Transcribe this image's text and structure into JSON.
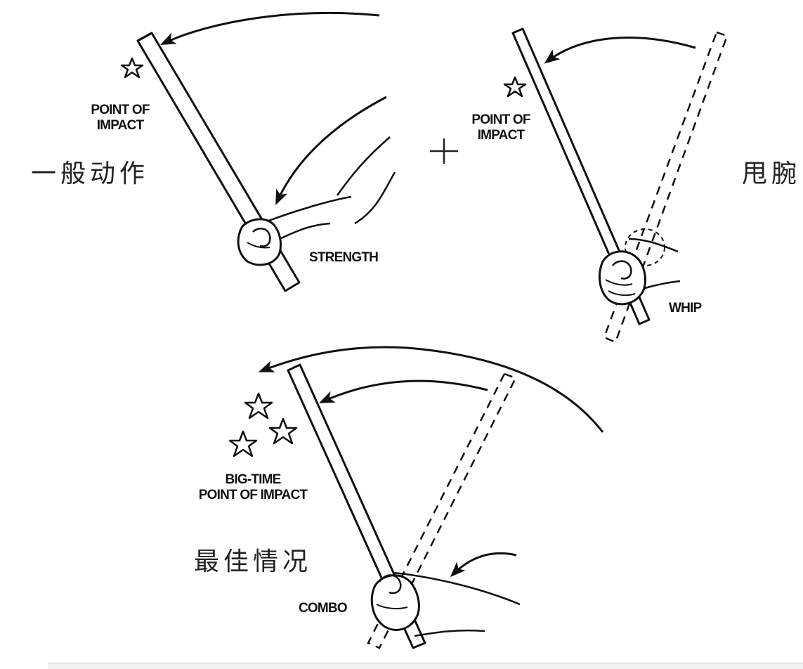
{
  "panels": {
    "strength": {
      "impact_label_line1": "POINT OF",
      "impact_label_line2": "IMPACT",
      "force_label": "STRENGTH",
      "caption": "一般动作"
    },
    "whip": {
      "impact_label_line1": "POINT OF",
      "impact_label_line2": "IMPACT",
      "force_label": "WHIP",
      "caption": "甩腕"
    },
    "combo": {
      "impact_label_line1": "BIG-TIME",
      "impact_label_line2": "POINT OF IMPACT",
      "force_label": "COMBO",
      "caption": "最佳情况"
    }
  },
  "operator": "+",
  "colors": {
    "ink": "#111111",
    "paper": "#ffffff"
  },
  "icons": [
    "star-icon",
    "arrow-icon",
    "hand-icon",
    "bat-icon"
  ]
}
